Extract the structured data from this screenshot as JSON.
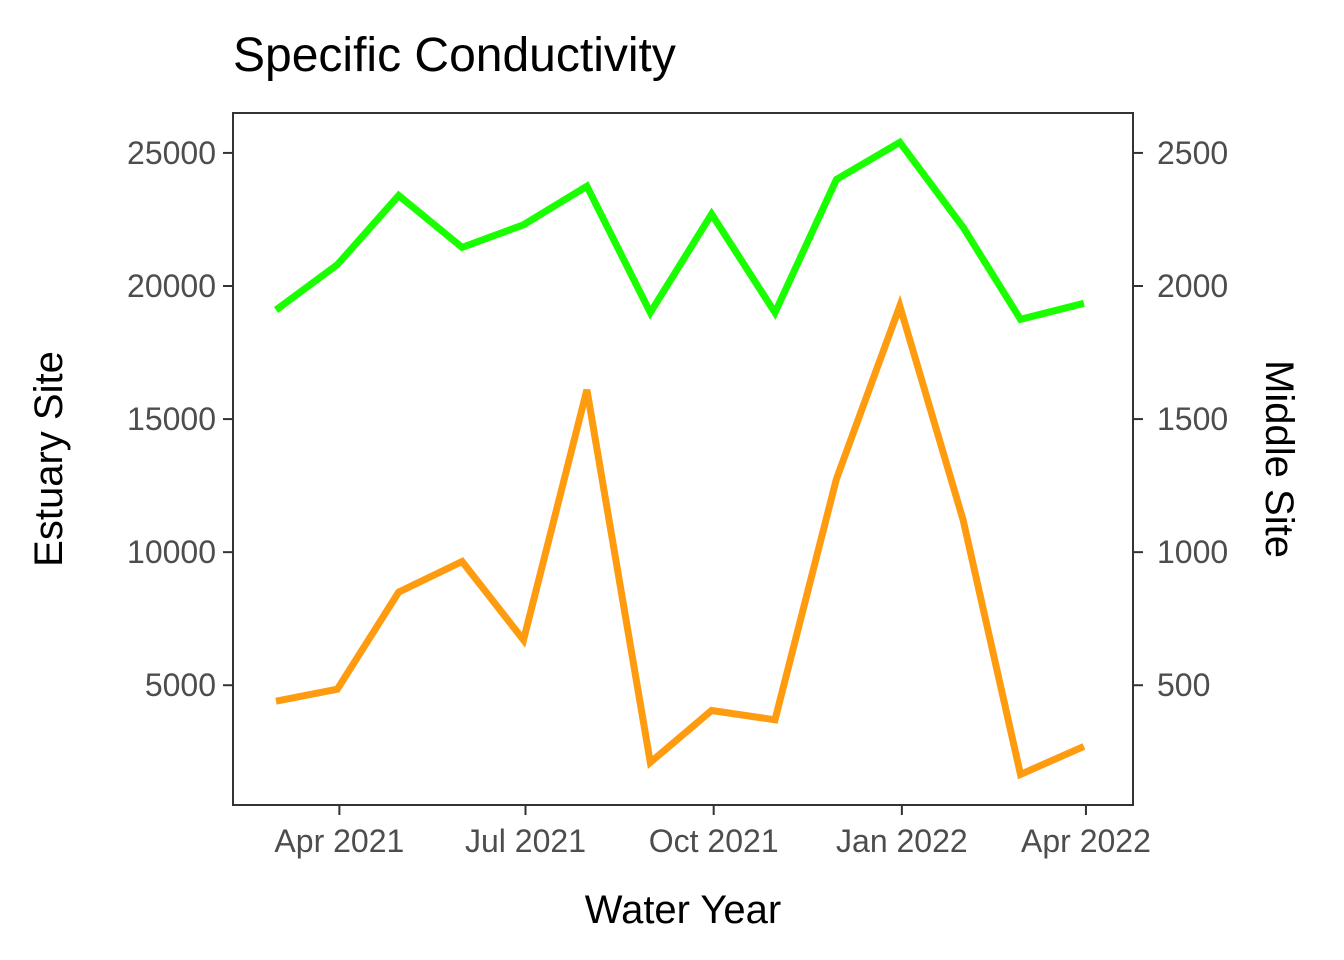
{
  "chart_data": {
    "type": "line",
    "title": "Specific Conductivity",
    "xlabel": "Water Year",
    "ylabel": "Estuary Site",
    "y2label": "Middle Site",
    "x_ticks": [
      {
        "date": "2021-04-01",
        "label": "Apr 2021"
      },
      {
        "date": "2021-07-01",
        "label": "Jul 2021"
      },
      {
        "date": "2021-10-01",
        "label": "Oct 2021"
      },
      {
        "date": "2022-01-01",
        "label": "Jan 2022"
      },
      {
        "date": "2022-04-01",
        "label": "Apr 2022"
      }
    ],
    "y_ticks": [
      5000,
      10000,
      15000,
      20000,
      25000
    ],
    "y2_ticks": [
      500,
      1000,
      1500,
      2000,
      2500
    ],
    "xlim": [
      "2021-02-08",
      "2022-04-24"
    ],
    "ylim": [
      500,
      26500
    ],
    "y2lim": [
      50,
      2650
    ],
    "grid": false,
    "legend": "none",
    "series": [
      {
        "axis": "left",
        "color": "#1aff00",
        "x": [
          "2021-03-01",
          "2021-03-31",
          "2021-04-30",
          "2021-05-31",
          "2021-06-30",
          "2021-07-31",
          "2021-08-31",
          "2021-09-30",
          "2021-10-31",
          "2021-11-30",
          "2021-12-31",
          "2022-01-31",
          "2022-02-28",
          "2022-03-31"
        ],
        "y": [
          19100,
          20800,
          23400,
          21450,
          22300,
          23750,
          19000,
          22700,
          19000,
          24000,
          25400,
          22200,
          18750,
          19350
        ]
      },
      {
        "axis": "right",
        "color": "#ff9b0f",
        "x": [
          "2021-03-01",
          "2021-03-31",
          "2021-04-30",
          "2021-05-31",
          "2021-06-30",
          "2021-07-31",
          "2021-08-31",
          "2021-09-30",
          "2021-10-31",
          "2021-11-30",
          "2021-12-31",
          "2022-01-31",
          "2022-02-28",
          "2022-03-31"
        ],
        "y": [
          440,
          485,
          850,
          965,
          670,
          1610,
          210,
          405,
          370,
          1275,
          1925,
          1120,
          165,
          270
        ]
      }
    ]
  }
}
